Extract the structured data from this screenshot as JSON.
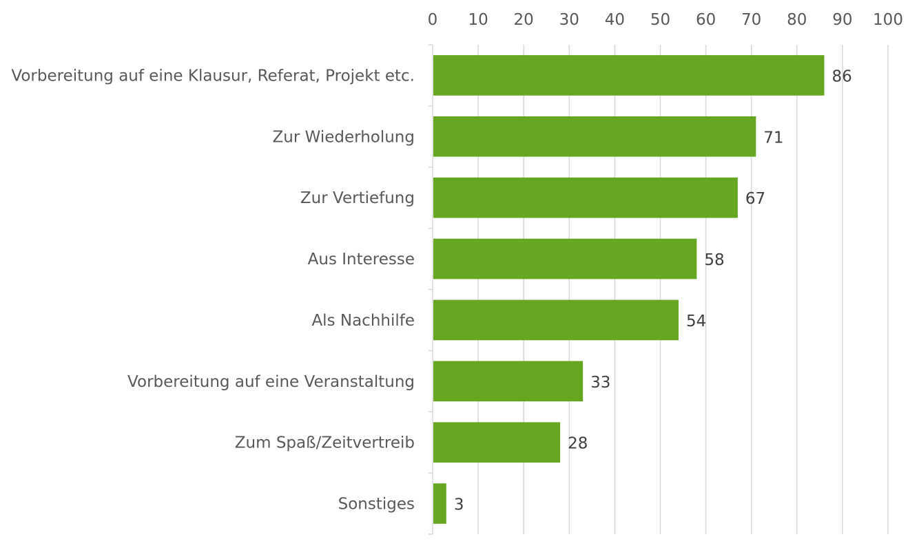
{
  "chart_data": {
    "type": "bar",
    "orientation": "horizontal",
    "categories": [
      "Vorbereitung auf eine Klausur, Referat, Projekt etc.",
      "Zur Wiederholung",
      "Zur Vertiefung",
      "Aus Interesse",
      "Als Nachhilfe",
      "Vorbereitung auf eine Veranstaltung",
      "Zum Spaß/Zeitvertreib",
      "Sonstiges"
    ],
    "values": [
      86,
      71,
      67,
      58,
      54,
      33,
      28,
      3
    ],
    "xlim": [
      0,
      100
    ],
    "xticks": [
      "0",
      "10",
      "20",
      "30",
      "40",
      "50",
      "60",
      "70",
      "80",
      "90",
      "100"
    ],
    "x_axis_position": "top",
    "grid": true,
    "data_labels": true,
    "legend": "none",
    "bar_color": "#66a621",
    "grid_color": "#d9d9d9",
    "title": "",
    "xlabel": "",
    "ylabel": ""
  }
}
